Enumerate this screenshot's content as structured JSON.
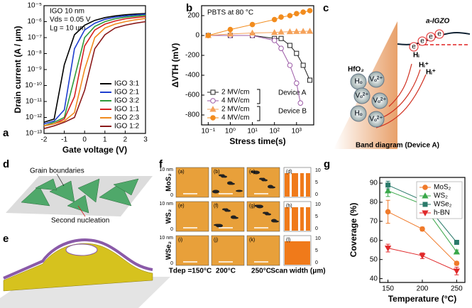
{
  "chart_data": [
    {
      "type": "line",
      "panel": "a",
      "x": [
        -2,
        -1.5,
        -1,
        -0.5,
        0,
        0.5,
        1,
        1.5,
        2,
        2.5,
        3
      ],
      "xlim": [
        -2,
        3
      ],
      "xticks": [
        -2,
        -1,
        0,
        1,
        2,
        3
      ],
      "ylim": [
        1e-13,
        1e-05
      ],
      "ylog": true,
      "yticks": [
        {
          "value": 1e-13,
          "label": "10⁻¹³"
        },
        {
          "value": 1e-12,
          "label": "10⁻¹²"
        },
        {
          "value": 1e-11,
          "label": "10⁻¹¹"
        },
        {
          "value": 1e-10,
          "label": "10⁻¹⁰"
        },
        {
          "value": 1e-09,
          "label": "10⁻⁹"
        },
        {
          "value": 1e-08,
          "label": "10⁻⁸"
        },
        {
          "value": 1e-07,
          "label": "10⁻⁷"
        },
        {
          "value": 1e-06,
          "label": "10⁻⁶"
        },
        {
          "value": 1e-05,
          "label": "10⁻⁵"
        }
      ],
      "x_label": "Gate voltage (V)",
      "y_label": "Drain current (A / μm)",
      "legend": "lower right",
      "annotations": [
        "IGO 10 nm",
        "Vds = 0.05 V",
        "Lg = 10 um"
      ],
      "series": [
        {
          "name": "IGO 3:1",
          "color": "#000000",
          "values": [
            5e-13,
            8e-13,
            2e-09,
            1.5e-07,
            6e-07,
            1.2e-06,
            1.8e-06,
            2.3e-06,
            2.7e-06,
            3e-06,
            3.2e-06
          ]
        },
        {
          "name": "IGO 2:1",
          "color": "#1f3fd0",
          "values": [
            4e-13,
            6e-13,
            3e-12,
            2e-08,
            3e-07,
            8e-07,
            1.4e-06,
            1.9e-06,
            2.3e-06,
            2.6e-06,
            2.9e-06
          ]
        },
        {
          "name": "IGO 3:2",
          "color": "#2e9a3a",
          "values": [
            3e-13,
            5e-13,
            1e-12,
            3e-10,
            1e-07,
            5e-07,
            1e-06,
            1.5e-06,
            1.9e-06,
            2.2e-06,
            2.5e-06
          ]
        },
        {
          "name": "IGO 1:1",
          "color": "#d42020",
          "values": [
            3e-13,
            4e-13,
            8e-13,
            2e-11,
            3e-08,
            3e-07,
            7e-07,
            1.1e-06,
            1.5e-06,
            1.8e-06,
            2.1e-06
          ]
        },
        {
          "name": "IGO 2:3",
          "color": "#f08a1e",
          "values": [
            3e-13,
            4e-13,
            6e-13,
            2e-12,
            1e-09,
            1e-07,
            4e-07,
            7e-07,
            1e-06,
            1.3e-06,
            1.6e-06
          ]
        },
        {
          "name": "IGO 1:2",
          "color": "#8b1a1a",
          "values": [
            2e-13,
            3e-13,
            5e-13,
            1e-12,
            5e-11,
            2e-08,
            1.5e-07,
            4e-07,
            6e-07,
            8e-07,
            1e-06
          ]
        }
      ]
    },
    {
      "type": "line",
      "panel": "b",
      "xlog": true,
      "xlim": [
        0.05,
        6000
      ],
      "xticks": [
        {
          "value": 0.1,
          "label": "10⁻¹"
        },
        {
          "value": 1,
          "label": "10⁰"
        },
        {
          "value": 10,
          "label": "10¹"
        },
        {
          "value": 100,
          "label": "10²"
        },
        {
          "value": 1000,
          "label": "10³"
        }
      ],
      "ylim": [
        -900,
        300
      ],
      "yticks": [
        -800,
        -600,
        -400,
        -200,
        0,
        200
      ],
      "x_label": "Stress time(s)",
      "y_label": "ΔVTH (mV)",
      "legend": "lower left",
      "annotations": [
        "PBTS at 80 °C",
        "Device A",
        "Device B"
      ],
      "series": [
        {
          "name": "2 MV/cm",
          "color": "#222222",
          "marker": "square",
          "filled": false,
          "x": [
            0.1,
            1,
            10,
            100,
            200,
            500,
            1000,
            2000,
            4000
          ],
          "values": [
            0,
            0,
            0,
            -30,
            -30,
            -100,
            -180,
            -300,
            -450
          ]
        },
        {
          "name": "4 MV/cm",
          "color": "#9b59a6",
          "marker": "circle",
          "filled": false,
          "x": [
            0.1,
            1,
            10,
            100,
            200,
            500,
            1000,
            1500
          ],
          "values": [
            0,
            0,
            0,
            -50,
            -130,
            -300,
            -480,
            -680
          ]
        },
        {
          "name": "2 MV/cm",
          "color": "#f5a25a",
          "marker": "triangle",
          "filled": true,
          "x": [
            0.1,
            1,
            10,
            100,
            200,
            500,
            1000,
            2000,
            4000
          ],
          "values": [
            0,
            15,
            25,
            30,
            35,
            38,
            40,
            42,
            43
          ]
        },
        {
          "name": "4 MV/cm",
          "color": "#f28c1e",
          "marker": "circle",
          "filled": true,
          "x": [
            0.1,
            1,
            10,
            100,
            200,
            500,
            1000,
            2000,
            4000
          ],
          "values": [
            0,
            60,
            110,
            160,
            185,
            200,
            220,
            235,
            250
          ]
        }
      ]
    },
    {
      "type": "line",
      "panel": "g",
      "x": [
        150,
        200,
        250
      ],
      "xlim": [
        138,
        262
      ],
      "xticks": [
        150,
        200,
        250
      ],
      "ylim": [
        38,
        93
      ],
      "yticks": [
        40,
        50,
        60,
        70,
        80,
        90
      ],
      "x_label": "Temperature (°C)",
      "y_label": "Coverage (%)",
      "legend": "upper right",
      "series": [
        {
          "name": "MoS₂",
          "color": "#f07a2a",
          "marker": "circle",
          "filled": true,
          "values": [
            75,
            66,
            48
          ],
          "errors": [
            6,
            1,
            1
          ]
        },
        {
          "name": "WS₂",
          "color": "#3aa84a",
          "marker": "triangle",
          "filled": true,
          "values": [
            86,
            79,
            54
          ],
          "errors": [
            3,
            1,
            1
          ]
        },
        {
          "name": "WSe₂",
          "color": "#2a7a6a",
          "marker": "square",
          "filled": true,
          "values": [
            89,
            81,
            59
          ],
          "errors": [
            2,
            2,
            1
          ]
        },
        {
          "name": "h-BN",
          "color": "#e0282a",
          "marker": "triangle-down",
          "filled": true,
          "values": [
            56,
            52,
            44
          ],
          "errors": [
            2,
            1.5,
            2
          ]
        }
      ]
    }
  ],
  "panel_labels": [
    "a",
    "b",
    "c",
    "d",
    "e",
    "f",
    "g"
  ],
  "band_diagram": {
    "oxide": "HfO₂",
    "channel": "a-IGZO",
    "caption": "Band diagram (Device A)",
    "electron": "e",
    "defects": [
      "Hₒ",
      "Vₒ²⁺",
      "Vₒ²⁺",
      "Vₒ²⁺",
      "Hₒ",
      "Vₒ²⁺"
    ],
    "hydrogen": [
      "Hᵢ",
      "Hᵢ⁺",
      "Hᵢ⁺"
    ]
  },
  "growth": {
    "grain": "Grain boundaries",
    "nucleation": "Second nucleation"
  },
  "f": {
    "rows": [
      "MoS₂",
      "WS₂",
      "WSe₂"
    ],
    "columns": [
      "Tdep =150°C",
      "200°C",
      "250°C",
      "Scan width (μm)"
    ],
    "subpanels": [
      "(a)",
      "(b)",
      "(c)",
      "(d)",
      "(e)",
      "(f)",
      "(g)",
      "(h)",
      "(i)",
      "(j)",
      "(k)",
      "(l)"
    ],
    "scale": [
      "10 nm",
      "0"
    ],
    "bar_ticks": [
      "10",
      "5",
      "0"
    ]
  }
}
